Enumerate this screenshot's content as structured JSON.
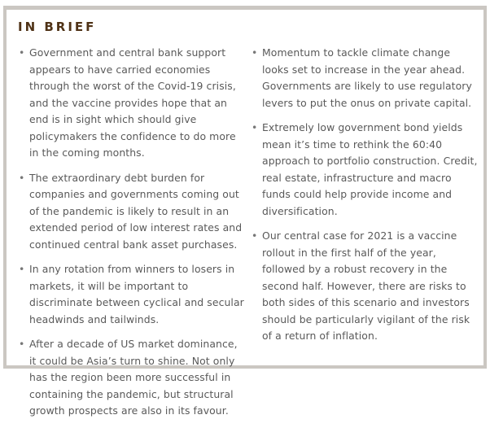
{
  "title": "IN BRIEF",
  "left_bullets": [
    "Government and central bank support appears to have carried economies through the worst of the Covid-19 crisis, and the vaccine provides hope that an end is in sight which should give policymakers the confidence to do more in the coming months.",
    "The extraordinary debt burden for companies and governments coming out of the pandemic is likely to result in an extended period of low interest rates and continued central bank asset purchases.",
    "In any rotation from winners to losers in markets, it will be important to discriminate between cyclical and secular headwinds and tailwinds.",
    "After a decade of US market dominance, it could be Asia’s turn to shine. Not only has the region been more successful in containing the pandemic, but structural growth prospects are also in its favour."
  ],
  "right_bullets": [
    "Momentum to tackle climate change looks set to increase in the year ahead. Governments are likely to use regulatory levers to put the onus on private capital.",
    "Extremely low government bond yields mean it’s time to rethink the 60:40 approach to portfolio construction. Credit, real estate, infrastructure and macro funds could help provide income and diversification.",
    "Our central case for 2021 is a vaccine rollout in the first half of the year, followed by a robust recovery in the second half. However, there are risks to both sides of this scenario and investors should be particularly vigilant of the risk of a return of inflation."
  ],
  "colors": {
    "title": "#4f3216",
    "text": "#595959",
    "border": "#cbc7c2"
  }
}
